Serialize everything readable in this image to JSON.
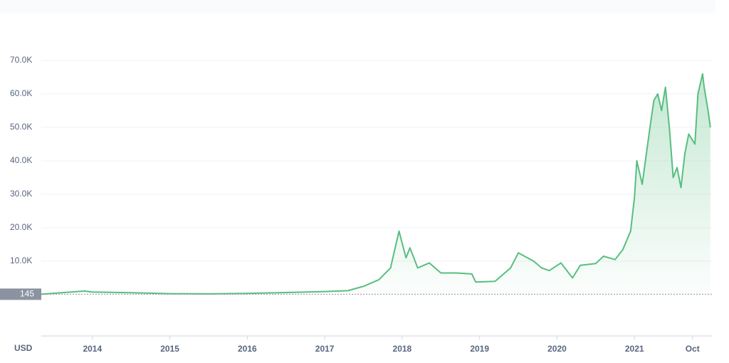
{
  "chart_data": {
    "type": "line",
    "x": [
      2013.34,
      2013.9,
      2014.0,
      2014.5,
      2015.0,
      2015.5,
      2016.0,
      2016.5,
      2017.0,
      2017.3,
      2017.5,
      2017.7,
      2017.85,
      2017.96,
      2018.05,
      2018.1,
      2018.2,
      2018.35,
      2018.5,
      2018.7,
      2018.9,
      2018.95,
      2019.2,
      2019.4,
      2019.5,
      2019.7,
      2019.8,
      2019.9,
      2020.05,
      2020.2,
      2020.3,
      2020.5,
      2020.6,
      2020.75,
      2020.85,
      2020.95,
      2021.0,
      2021.03,
      2021.1,
      2021.2,
      2021.25,
      2021.3,
      2021.35,
      2021.4,
      2021.45,
      2021.5,
      2021.55,
      2021.6,
      2021.65,
      2021.7,
      2021.78,
      2021.82,
      2021.88,
      2021.9,
      2021.95,
      2021.98
    ],
    "values": [
      145,
      1100,
      800,
      600,
      300,
      250,
      400,
      650,
      950,
      1200,
      2500,
      4500,
      8000,
      19000,
      11000,
      14000,
      8000,
      9500,
      6500,
      6500,
      6200,
      3800,
      4000,
      8000,
      12500,
      10000,
      8000,
      7200,
      9500,
      5000,
      8800,
      9300,
      11500,
      10500,
      13500,
      19000,
      29000,
      40000,
      33000,
      50000,
      58000,
      60000,
      55000,
      62000,
      50000,
      35000,
      38000,
      32000,
      42000,
      48000,
      45000,
      60000,
      66000,
      62000,
      55000,
      50000
    ],
    "color": "#58be80",
    "xlim": [
      2013.34,
      2022.0
    ],
    "xticks": [
      2014,
      2015,
      2016,
      2017,
      2018,
      2019,
      2020,
      2021,
      {
        "value": 2021.75,
        "label": "Oct"
      }
    ],
    "ylim": [
      -11900,
      72100
    ],
    "yticks": [
      {
        "value": 10000,
        "label": "10.0K"
      },
      {
        "value": 20000,
        "label": "20.0K"
      },
      {
        "value": 30000,
        "label": "30.0K"
      },
      {
        "value": 40000,
        "label": "40.0K"
      },
      {
        "value": 50000,
        "label": "50.0K"
      },
      {
        "value": 60000,
        "label": "60.0K"
      },
      {
        "value": 70000,
        "label": "70.0K"
      }
    ],
    "price_marker": 145,
    "y_label": "USD",
    "grid": true
  }
}
